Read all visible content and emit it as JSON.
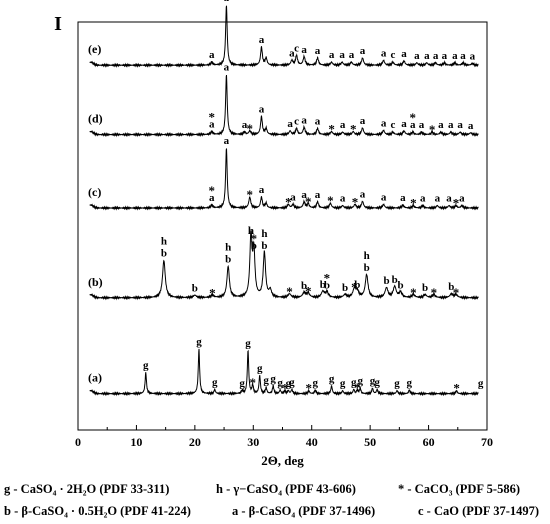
{
  "chart_data": {
    "type": "line",
    "title": "",
    "ylabel": "I",
    "xlabel": "2Θ, deg",
    "xlim": [
      0,
      70
    ],
    "x_ticks": [
      "0",
      "10",
      "20",
      "30",
      "40",
      "50",
      "60",
      "70"
    ],
    "grid": false,
    "series": [
      {
        "name": "(e)",
        "baseline_fraction": 0.85,
        "peaks": [
          {
            "x": 22.9,
            "h": 0.05,
            "w": 0.2,
            "labels": [
              "a"
            ]
          },
          {
            "x": 25.4,
            "h": 1.0,
            "w": 0.16,
            "labels": [
              "a"
            ]
          },
          {
            "x": 31.4,
            "h": 0.3,
            "w": 0.18,
            "labels": [
              "a"
            ]
          },
          {
            "x": 32.2,
            "h": 0.12,
            "w": 0.18,
            "labels": []
          },
          {
            "x": 36.6,
            "h": 0.08,
            "w": 0.2,
            "labels": [
              "a"
            ]
          },
          {
            "x": 37.4,
            "h": 0.16,
            "w": 0.2,
            "labels": [
              "c"
            ]
          },
          {
            "x": 38.7,
            "h": 0.14,
            "w": 0.2,
            "labels": [
              "a"
            ]
          },
          {
            "x": 41.0,
            "h": 0.12,
            "w": 0.2,
            "labels": [
              "a"
            ]
          },
          {
            "x": 43.4,
            "h": 0.05,
            "w": 0.2,
            "labels": [
              "a"
            ]
          },
          {
            "x": 45.2,
            "h": 0.05,
            "w": 0.2,
            "labels": [
              "a"
            ]
          },
          {
            "x": 46.8,
            "h": 0.05,
            "w": 0.2,
            "labels": [
              "a"
            ]
          },
          {
            "x": 48.7,
            "h": 0.12,
            "w": 0.2,
            "labels": [
              "a"
            ]
          },
          {
            "x": 52.3,
            "h": 0.08,
            "w": 0.2,
            "labels": [
              "a"
            ]
          },
          {
            "x": 53.9,
            "h": 0.05,
            "w": 0.2,
            "labels": [
              "c"
            ]
          },
          {
            "x": 55.8,
            "h": 0.07,
            "w": 0.2,
            "labels": [
              "a"
            ]
          },
          {
            "x": 58.0,
            "h": 0.04,
            "w": 0.2,
            "labels": [
              "a"
            ]
          },
          {
            "x": 59.7,
            "h": 0.04,
            "w": 0.2,
            "labels": [
              "a"
            ]
          },
          {
            "x": 61.2,
            "h": 0.04,
            "w": 0.2,
            "labels": [
              "a"
            ]
          },
          {
            "x": 62.7,
            "h": 0.04,
            "w": 0.2,
            "labels": [
              "a"
            ]
          },
          {
            "x": 64.5,
            "h": 0.04,
            "w": 0.2,
            "labels": [
              "a"
            ]
          },
          {
            "x": 65.9,
            "h": 0.04,
            "w": 0.2,
            "labels": [
              "a"
            ]
          },
          {
            "x": 67.5,
            "h": 0.03,
            "w": 0.2,
            "labels": [
              "a"
            ]
          }
        ]
      },
      {
        "name": "(d)",
        "baseline_fraction": 0.68,
        "peaks": [
          {
            "x": 22.9,
            "h": 0.05,
            "w": 0.2,
            "labels": [
              "a",
              "*"
            ]
          },
          {
            "x": 25.4,
            "h": 1.0,
            "w": 0.16,
            "labels": [
              "a"
            ]
          },
          {
            "x": 28.5,
            "h": 0.04,
            "w": 0.2,
            "labels": [
              "a"
            ]
          },
          {
            "x": 29.4,
            "h": 0.06,
            "w": 0.2,
            "labels": [
              "*"
            ]
          },
          {
            "x": 31.4,
            "h": 0.3,
            "w": 0.18,
            "labels": [
              "a"
            ]
          },
          {
            "x": 32.2,
            "h": 0.1,
            "w": 0.18,
            "labels": []
          },
          {
            "x": 36.3,
            "h": 0.06,
            "w": 0.2,
            "labels": [
              "a"
            ]
          },
          {
            "x": 37.4,
            "h": 0.1,
            "w": 0.2,
            "labels": [
              "c"
            ]
          },
          {
            "x": 38.7,
            "h": 0.12,
            "w": 0.2,
            "labels": [
              "a"
            ]
          },
          {
            "x": 41.0,
            "h": 0.1,
            "w": 0.2,
            "labels": [
              "a"
            ]
          },
          {
            "x": 43.4,
            "h": 0.05,
            "w": 0.2,
            "labels": [
              "*"
            ]
          },
          {
            "x": 45.3,
            "h": 0.04,
            "w": 0.2,
            "labels": [
              "a"
            ]
          },
          {
            "x": 47.1,
            "h": 0.05,
            "w": 0.2,
            "labels": [
              "*"
            ]
          },
          {
            "x": 48.7,
            "h": 0.11,
            "w": 0.2,
            "labels": [
              "a"
            ]
          },
          {
            "x": 52.3,
            "h": 0.07,
            "w": 0.2,
            "labels": [
              "a"
            ]
          },
          {
            "x": 53.9,
            "h": 0.04,
            "w": 0.2,
            "labels": [
              "c"
            ]
          },
          {
            "x": 55.8,
            "h": 0.06,
            "w": 0.2,
            "labels": [
              "a"
            ]
          },
          {
            "x": 57.3,
            "h": 0.04,
            "w": 0.2,
            "labels": [
              "a",
              "*"
            ]
          },
          {
            "x": 58.8,
            "h": 0.04,
            "w": 0.2,
            "labels": [
              "a"
            ]
          },
          {
            "x": 60.6,
            "h": 0.04,
            "w": 0.2,
            "labels": [
              "*"
            ]
          },
          {
            "x": 62.1,
            "h": 0.04,
            "w": 0.2,
            "labels": [
              "a"
            ]
          },
          {
            "x": 63.8,
            "h": 0.04,
            "w": 0.2,
            "labels": [
              "a"
            ]
          },
          {
            "x": 65.4,
            "h": 0.04,
            "w": 0.2,
            "labels": [
              "a"
            ]
          },
          {
            "x": 67.2,
            "h": 0.03,
            "w": 0.2,
            "labels": [
              "a"
            ]
          }
        ]
      },
      {
        "name": "(c)",
        "baseline_fraction": 0.5,
        "peaks": [
          {
            "x": 22.9,
            "h": 0.05,
            "w": 0.2,
            "labels": [
              "a",
              "*"
            ]
          },
          {
            "x": 25.4,
            "h": 1.0,
            "w": 0.16,
            "labels": [
              "a"
            ]
          },
          {
            "x": 29.4,
            "h": 0.18,
            "w": 0.2,
            "labels": [
              "*"
            ]
          },
          {
            "x": 31.4,
            "h": 0.18,
            "w": 0.18,
            "labels": [
              "a"
            ]
          },
          {
            "x": 32.2,
            "h": 0.08,
            "w": 0.18,
            "labels": []
          },
          {
            "x": 36.0,
            "h": 0.06,
            "w": 0.2,
            "labels": [
              "*"
            ]
          },
          {
            "x": 36.8,
            "h": 0.06,
            "w": 0.2,
            "labels": [
              "a"
            ]
          },
          {
            "x": 38.7,
            "h": 0.1,
            "w": 0.2,
            "labels": [
              "a"
            ]
          },
          {
            "x": 39.4,
            "h": 0.07,
            "w": 0.2,
            "labels": [
              "*"
            ]
          },
          {
            "x": 41.0,
            "h": 0.1,
            "w": 0.2,
            "labels": [
              "a"
            ]
          },
          {
            "x": 43.2,
            "h": 0.08,
            "w": 0.2,
            "labels": [
              "*"
            ]
          },
          {
            "x": 45.3,
            "h": 0.04,
            "w": 0.2,
            "labels": [
              "a"
            ]
          },
          {
            "x": 47.4,
            "h": 0.06,
            "w": 0.2,
            "labels": [
              "*"
            ]
          },
          {
            "x": 48.7,
            "h": 0.11,
            "w": 0.2,
            "labels": [
              "a"
            ]
          },
          {
            "x": 52.3,
            "h": 0.06,
            "w": 0.2,
            "labels": [
              "a"
            ]
          },
          {
            "x": 55.6,
            "h": 0.05,
            "w": 0.2,
            "labels": [
              "a"
            ]
          },
          {
            "x": 57.4,
            "h": 0.04,
            "w": 0.2,
            "labels": [
              "*"
            ]
          },
          {
            "x": 59.0,
            "h": 0.04,
            "w": 0.2,
            "labels": [
              "a"
            ]
          },
          {
            "x": 61.5,
            "h": 0.04,
            "w": 0.2,
            "labels": [
              "a"
            ]
          },
          {
            "x": 63.5,
            "h": 0.04,
            "w": 0.2,
            "labels": [
              "a"
            ]
          },
          {
            "x": 64.7,
            "h": 0.04,
            "w": 0.2,
            "labels": [
              "*"
            ]
          },
          {
            "x": 65.7,
            "h": 0.04,
            "w": 0.2,
            "labels": [
              "a"
            ]
          }
        ]
      },
      {
        "name": "(b)",
        "baseline_fraction": 0.28,
        "peaks": [
          {
            "x": 14.7,
            "h": 0.62,
            "w": 0.28,
            "labels": [
              "b",
              "h"
            ]
          },
          {
            "x": 20.0,
            "h": 0.04,
            "w": 0.3,
            "labels": [
              "b"
            ]
          },
          {
            "x": 23.0,
            "h": 0.04,
            "w": 0.3,
            "labels": [
              "*"
            ]
          },
          {
            "x": 25.7,
            "h": 0.52,
            "w": 0.25,
            "labels": [
              "b",
              "h"
            ]
          },
          {
            "x": 29.6,
            "h": 1.0,
            "w": 0.22,
            "labels": [
              "h"
            ]
          },
          {
            "x": 30.1,
            "h": 0.75,
            "w": 0.22,
            "labels": [
              "b",
              "*"
            ]
          },
          {
            "x": 31.9,
            "h": 0.75,
            "w": 0.24,
            "labels": [
              "b",
              "h"
            ]
          },
          {
            "x": 32.9,
            "h": 0.12,
            "w": 0.25,
            "labels": []
          },
          {
            "x": 36.2,
            "h": 0.06,
            "w": 0.3,
            "labels": [
              "*"
            ]
          },
          {
            "x": 38.7,
            "h": 0.08,
            "w": 0.3,
            "labels": [
              "b"
            ]
          },
          {
            "x": 39.4,
            "h": 0.07,
            "w": 0.3,
            "labels": [
              "*"
            ]
          },
          {
            "x": 41.9,
            "h": 0.1,
            "w": 0.3,
            "labels": [
              "b"
            ]
          },
          {
            "x": 42.6,
            "h": 0.09,
            "w": 0.3,
            "labels": [
              "b",
              "*"
            ]
          },
          {
            "x": 45.7,
            "h": 0.05,
            "w": 0.3,
            "labels": [
              "b"
            ]
          },
          {
            "x": 47.3,
            "h": 0.14,
            "w": 0.3,
            "labels": [
              "*"
            ]
          },
          {
            "x": 47.8,
            "h": 0.1,
            "w": 0.3,
            "labels": [
              "b"
            ]
          },
          {
            "x": 49.4,
            "h": 0.38,
            "w": 0.28,
            "labels": [
              "b",
              "h"
            ]
          },
          {
            "x": 52.8,
            "h": 0.16,
            "w": 0.3,
            "labels": [
              "b"
            ]
          },
          {
            "x": 54.2,
            "h": 0.18,
            "w": 0.3,
            "labels": [
              "b"
            ]
          },
          {
            "x": 55.2,
            "h": 0.09,
            "w": 0.3,
            "labels": [
              "b"
            ]
          },
          {
            "x": 57.4,
            "h": 0.05,
            "w": 0.3,
            "labels": [
              "*"
            ]
          },
          {
            "x": 59.4,
            "h": 0.05,
            "w": 0.3,
            "labels": [
              "b"
            ]
          },
          {
            "x": 60.9,
            "h": 0.05,
            "w": 0.3,
            "labels": [
              "*"
            ]
          },
          {
            "x": 63.9,
            "h": 0.06,
            "w": 0.3,
            "labels": [
              "b"
            ]
          },
          {
            "x": 64.7,
            "h": 0.05,
            "w": 0.3,
            "labels": [
              "*"
            ]
          }
        ]
      },
      {
        "name": "(a)",
        "baseline_fraction": 0.045,
        "peaks": [
          {
            "x": 11.6,
            "h": 0.35,
            "w": 0.14,
            "labels": [
              "g"
            ]
          },
          {
            "x": 20.7,
            "h": 0.74,
            "w": 0.14,
            "labels": [
              "g"
            ]
          },
          {
            "x": 23.4,
            "h": 0.07,
            "w": 0.14,
            "labels": [
              "g"
            ]
          },
          {
            "x": 28.1,
            "h": 0.05,
            "w": 0.14,
            "labels": [
              "g"
            ]
          },
          {
            "x": 29.1,
            "h": 0.72,
            "w": 0.14,
            "labels": [
              "g"
            ]
          },
          {
            "x": 29.9,
            "h": 0.14,
            "w": 0.14,
            "labels": [
              "*"
            ]
          },
          {
            "x": 31.1,
            "h": 0.3,
            "w": 0.14,
            "labels": [
              "g"
            ]
          },
          {
            "x": 32.2,
            "h": 0.1,
            "w": 0.14,
            "labels": [
              "g"
            ]
          },
          {
            "x": 33.4,
            "h": 0.13,
            "w": 0.14,
            "labels": [
              "g"
            ]
          },
          {
            "x": 34.6,
            "h": 0.06,
            "w": 0.14,
            "labels": [
              "g"
            ]
          },
          {
            "x": 35.4,
            "h": 0.05,
            "w": 0.14,
            "labels": [
              "*"
            ]
          },
          {
            "x": 36.0,
            "h": 0.05,
            "w": 0.14,
            "labels": [
              "g"
            ]
          },
          {
            "x": 36.6,
            "h": 0.07,
            "w": 0.14,
            "labels": [
              "g"
            ]
          },
          {
            "x": 39.5,
            "h": 0.05,
            "w": 0.14,
            "labels": [
              "*"
            ]
          },
          {
            "x": 40.6,
            "h": 0.06,
            "w": 0.14,
            "labels": [
              "g"
            ]
          },
          {
            "x": 43.4,
            "h": 0.13,
            "w": 0.14,
            "labels": [
              "g"
            ]
          },
          {
            "x": 45.3,
            "h": 0.05,
            "w": 0.14,
            "labels": [
              "g"
            ]
          },
          {
            "x": 47.2,
            "h": 0.07,
            "w": 0.14,
            "labels": [
              "g"
            ]
          },
          {
            "x": 47.8,
            "h": 0.06,
            "w": 0.14,
            "labels": [
              "*"
            ]
          },
          {
            "x": 48.3,
            "h": 0.09,
            "w": 0.14,
            "labels": [
              "g"
            ]
          },
          {
            "x": 50.4,
            "h": 0.09,
            "w": 0.14,
            "labels": [
              "g"
            ]
          },
          {
            "x": 51.2,
            "h": 0.07,
            "w": 0.14,
            "labels": [
              "g"
            ]
          },
          {
            "x": 54.6,
            "h": 0.05,
            "w": 0.14,
            "labels": [
              "g"
            ]
          },
          {
            "x": 56.7,
            "h": 0.06,
            "w": 0.14,
            "labels": [
              "g"
            ]
          },
          {
            "x": 64.8,
            "h": 0.05,
            "w": 0.14,
            "labels": [
              "*"
            ]
          },
          {
            "x": 68.9,
            "h": 0.05,
            "w": 0.14,
            "labels": [
              "g"
            ]
          }
        ]
      }
    ]
  },
  "legend": {
    "g": "g - CaSO₄ · 2H₂O (PDF 33-311)",
    "h": "h - γ−CaSO₄ (PDF 43-606)",
    "star": "* - CaCO₃ (PDF 5-586)",
    "b": "b - β-CaSO₄ · 0.5H₂O (PDF 41-224)",
    "a": "a - β-CaSO₄ (PDF 37-1496)",
    "c": "c - CaO (PDF 37-1497)"
  }
}
